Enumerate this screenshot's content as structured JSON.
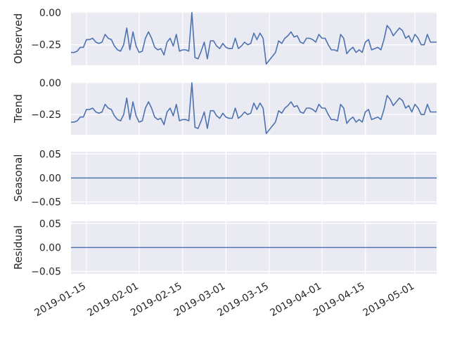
{
  "chart_data": [
    {
      "type": "line",
      "ylabel": "Observed",
      "yticks": [
        0.0,
        -0.25
      ],
      "ytick_labels": [
        "0.00",
        "−0.25"
      ],
      "ylim": [
        -0.41,
        0.005
      ],
      "series": [
        {
          "color": "#4c72b0",
          "x": [
            "2019-01-10",
            "2019-01-11",
            "2019-01-12",
            "2019-01-13",
            "2019-01-14",
            "2019-01-15",
            "2019-01-16",
            "2019-01-17",
            "2019-01-18",
            "2019-01-19",
            "2019-01-20",
            "2019-01-21",
            "2019-01-22",
            "2019-01-23",
            "2019-01-24",
            "2019-01-25",
            "2019-01-26",
            "2019-01-27",
            "2019-01-28",
            "2019-01-29",
            "2019-01-30",
            "2019-01-31",
            "2019-02-01",
            "2019-02-02",
            "2019-02-03",
            "2019-02-04",
            "2019-02-05",
            "2019-02-06",
            "2019-02-07",
            "2019-02-08",
            "2019-02-09",
            "2019-02-10",
            "2019-02-11",
            "2019-02-12",
            "2019-02-13",
            "2019-02-14",
            "2019-02-15",
            "2019-02-16",
            "2019-02-17",
            "2019-02-18",
            "2019-02-19",
            "2019-02-20",
            "2019-02-21",
            "2019-02-22",
            "2019-02-23",
            "2019-02-24",
            "2019-02-25",
            "2019-02-26",
            "2019-02-27",
            "2019-02-28",
            "2019-03-01",
            "2019-03-02",
            "2019-03-03",
            "2019-03-04",
            "2019-03-05",
            "2019-03-06",
            "2019-03-07",
            "2019-03-08",
            "2019-03-09",
            "2019-03-10",
            "2019-03-11",
            "2019-03-12",
            "2019-03-13",
            "2019-03-14",
            "2019-03-15",
            "2019-03-16",
            "2019-03-17",
            "2019-03-18",
            "2019-03-19",
            "2019-03-20",
            "2019-03-21",
            "2019-03-22",
            "2019-03-23",
            "2019-03-24",
            "2019-03-25",
            "2019-03-26",
            "2019-03-27",
            "2019-03-28",
            "2019-03-29",
            "2019-03-30",
            "2019-03-31",
            "2019-04-01",
            "2019-04-02",
            "2019-04-03",
            "2019-04-04",
            "2019-04-05",
            "2019-04-06",
            "2019-04-07",
            "2019-04-08",
            "2019-04-09",
            "2019-04-10",
            "2019-04-11",
            "2019-04-12",
            "2019-04-13",
            "2019-04-14",
            "2019-04-15",
            "2019-04-16",
            "2019-04-17",
            "2019-04-18",
            "2019-04-19",
            "2019-04-20",
            "2019-04-21",
            "2019-04-22",
            "2019-04-23",
            "2019-04-24",
            "2019-04-25",
            "2019-04-26",
            "2019-04-27",
            "2019-04-28",
            "2019-04-29",
            "2019-04-30",
            "2019-05-01",
            "2019-05-02",
            "2019-05-03",
            "2019-05-04",
            "2019-05-05",
            "2019-05-06",
            "2019-05-07",
            "2019-05-08"
          ],
          "values": [
            -0.31,
            -0.31,
            -0.3,
            -0.27,
            -0.27,
            -0.21,
            -0.21,
            -0.2,
            -0.23,
            -0.24,
            -0.23,
            -0.17,
            -0.2,
            -0.21,
            -0.26,
            -0.29,
            -0.3,
            -0.25,
            -0.12,
            -0.29,
            -0.15,
            -0.26,
            -0.31,
            -0.3,
            -0.2,
            -0.15,
            -0.2,
            -0.27,
            -0.29,
            -0.28,
            -0.33,
            -0.23,
            -0.2,
            -0.26,
            -0.17,
            -0.3,
            -0.29,
            -0.29,
            -0.3,
            0.0,
            -0.35,
            -0.36,
            -0.3,
            -0.23,
            -0.36,
            -0.22,
            -0.22,
            -0.26,
            -0.28,
            -0.24,
            -0.27,
            -0.28,
            -0.28,
            -0.2,
            -0.28,
            -0.26,
            -0.23,
            -0.25,
            -0.24,
            -0.16,
            -0.21,
            -0.16,
            -0.2,
            -0.4,
            -0.37,
            -0.34,
            -0.31,
            -0.22,
            -0.24,
            -0.2,
            -0.18,
            -0.15,
            -0.19,
            -0.18,
            -0.23,
            -0.24,
            -0.2,
            -0.2,
            -0.21,
            -0.23,
            -0.17,
            -0.2,
            -0.2,
            -0.25,
            -0.29,
            -0.29,
            -0.3,
            -0.17,
            -0.2,
            -0.32,
            -0.29,
            -0.27,
            -0.31,
            -0.29,
            -0.31,
            -0.23,
            -0.21,
            -0.29,
            -0.28,
            -0.27,
            -0.29,
            -0.21,
            -0.1,
            -0.13,
            -0.18,
            -0.15,
            -0.12,
            -0.14,
            -0.2,
            -0.18,
            -0.23,
            -0.17,
            -0.2,
            -0.25,
            -0.25,
            -0.17,
            -0.23,
            -0.23,
            -0.23
          ]
        }
      ]
    },
    {
      "type": "line",
      "ylabel": "Trend",
      "yticks": [
        0.0,
        -0.25
      ],
      "ytick_labels": [
        "0.00",
        "−0.25"
      ],
      "ylim": [
        -0.41,
        0.005
      ],
      "series": [
        {
          "color": "#4c72b0",
          "same_as_panel": 0
        }
      ]
    },
    {
      "type": "line",
      "ylabel": "Seasonal",
      "yticks": [
        0.05,
        0.0,
        -0.05
      ],
      "ytick_labels": [
        "0.05",
        "0.00",
        "−0.05"
      ],
      "ylim": [
        -0.055,
        0.055
      ],
      "series": [
        {
          "color": "#4c72b0",
          "constant": 0.0
        }
      ]
    },
    {
      "type": "line",
      "ylabel": "Residual",
      "yticks": [
        0.05,
        0.0,
        -0.05
      ],
      "ytick_labels": [
        "0.05",
        "0.00",
        "−0.05"
      ],
      "ylim": [
        -0.055,
        0.055
      ],
      "series": [
        {
          "color": "#4c72b0",
          "constant": 0.0
        }
      ]
    }
  ],
  "x_axis": {
    "range": [
      "2019-01-10",
      "2019-05-08"
    ],
    "ticks": [
      "2019-01-15",
      "2019-02-01",
      "2019-02-15",
      "2019-03-01",
      "2019-03-15",
      "2019-04-01",
      "2019-04-15",
      "2019-05-01"
    ],
    "tick_labels": [
      "2019-01-15",
      "2019-02-01",
      "2019-02-15",
      "2019-03-01",
      "2019-03-15",
      "2019-04-01",
      "2019-04-15",
      "2019-05-01"
    ]
  },
  "style": {
    "panel_background": "#eaeaf2",
    "grid_color": "#ffffff",
    "line_color": "#4c72b0",
    "text_color": "#262626"
  }
}
